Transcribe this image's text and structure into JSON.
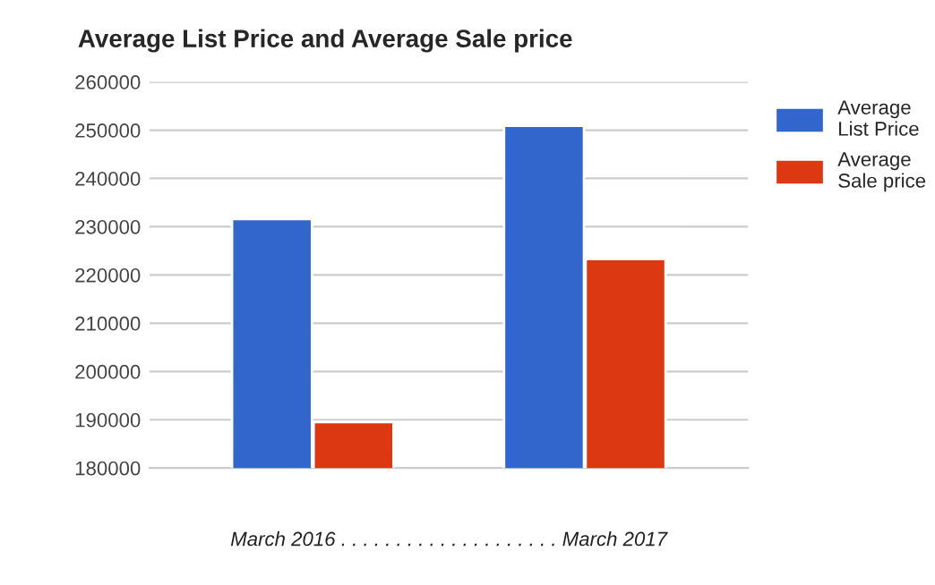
{
  "chart_data": {
    "type": "bar",
    "title": "Average List Price and Average Sale price",
    "xlabel": "March 2016 . . . . . . . . . . . . . . . . . . . . March 2017",
    "categories": [
      null,
      null
    ],
    "series": [
      {
        "name": "Average List Price",
        "color": "#3366cc",
        "values": [
          231600,
          250900
        ]
      },
      {
        "name": "Average Sale price",
        "color": "#dc3912",
        "values": [
          189500,
          223300
        ]
      }
    ],
    "ylim": [
      180000,
      260000
    ],
    "yticks": [
      180000,
      190000,
      200000,
      210000,
      220000,
      230000,
      240000,
      250000,
      260000
    ],
    "grid": "y",
    "legend": "right"
  }
}
